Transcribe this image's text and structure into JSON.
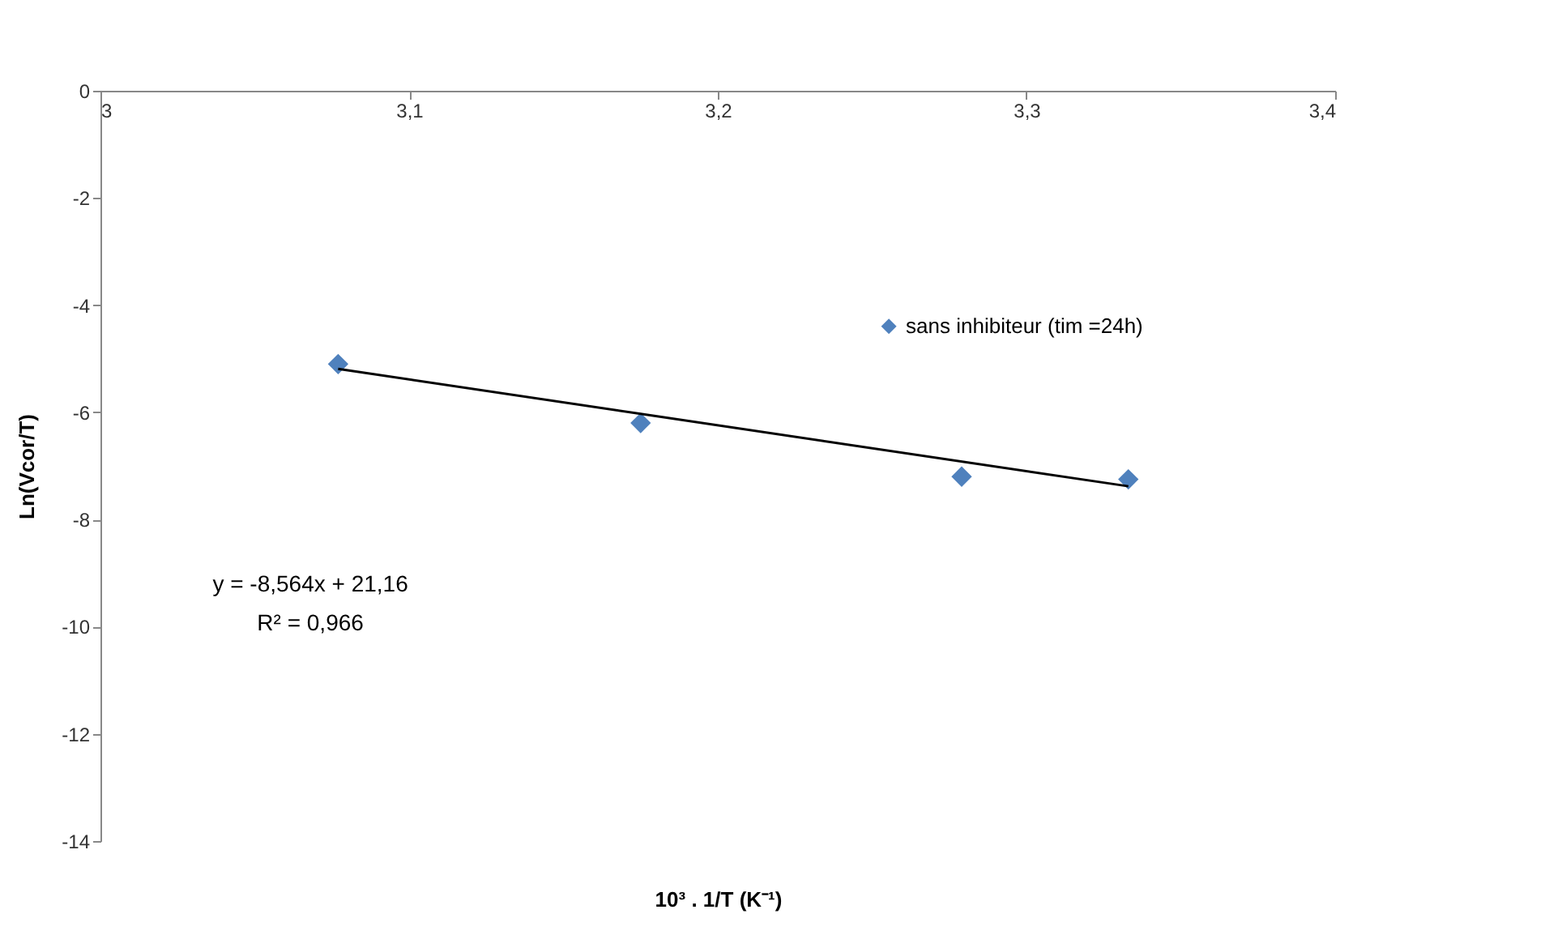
{
  "chart_data": {
    "type": "scatter",
    "xlabel": "10³ . 1/T (K⁻¹)",
    "ylabel": "Ln(Vcor/T)",
    "xlim": [
      3,
      3.4
    ],
    "xticks": [
      {
        "value": 3,
        "label": "3"
      },
      {
        "value": 3.1,
        "label": "3,1"
      },
      {
        "value": 3.2,
        "label": "3,2"
      },
      {
        "value": 3.3,
        "label": "3,3"
      },
      {
        "value": 3.4,
        "label": "3,4"
      }
    ],
    "ylim": [
      -14,
      0
    ],
    "yticks": [
      -14,
      -12,
      -10,
      -8,
      -6,
      -4,
      -2,
      0
    ],
    "grid": false,
    "legend": "right",
    "marker": "diamond",
    "series": [
      {
        "name": "sans inhibiteur (tim =24h)",
        "color": "#4f81bd",
        "x": [
          3.077,
          3.175,
          3.279,
          3.333
        ],
        "values": [
          -5.1,
          -6.2,
          -7.2,
          -7.25
        ]
      },
      {
        "type": "line",
        "marker": "none",
        "color": "#000000",
        "x": [
          3.077,
          3.333
        ],
        "values": [
          -5.19,
          -7.38
        ]
      }
    ],
    "annotations": [
      "y = -8,564x + 21,16",
      "R² = 0,966"
    ]
  }
}
